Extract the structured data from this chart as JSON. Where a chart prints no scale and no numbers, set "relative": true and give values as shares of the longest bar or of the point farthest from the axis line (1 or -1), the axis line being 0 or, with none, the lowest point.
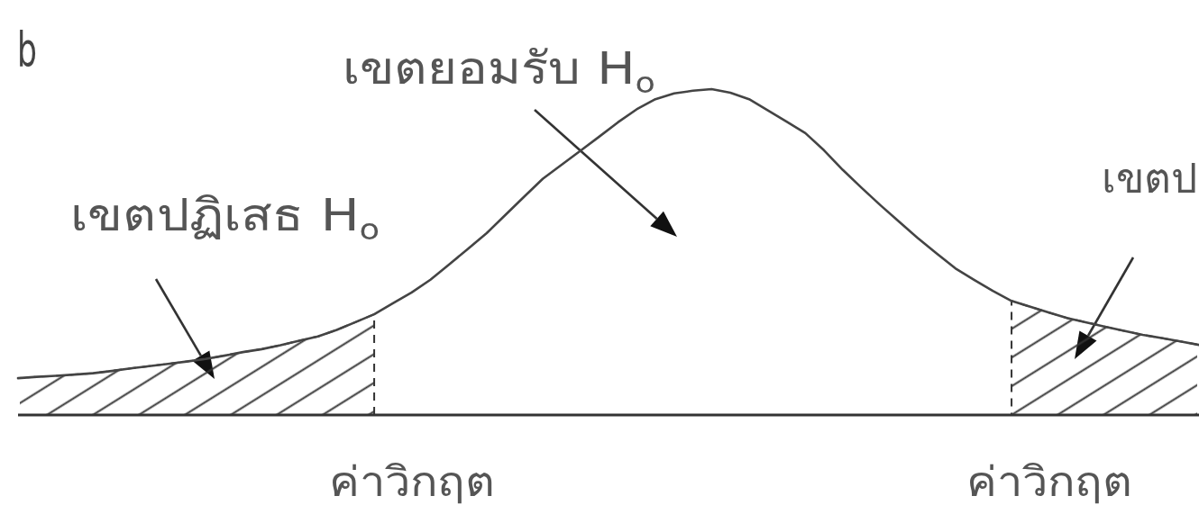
{
  "chart_data": {
    "type": "line",
    "relative": true,
    "categories": [
      null,
      null,
      null,
      null,
      null,
      null,
      null,
      null,
      null,
      null,
      null,
      null,
      null,
      null,
      null,
      null,
      null,
      null,
      null,
      null,
      null,
      "ค่าวิกฤต",
      null,
      null,
      null,
      null,
      null,
      null,
      null,
      null,
      null,
      null,
      null,
      null,
      null,
      null,
      null,
      null,
      null,
      null,
      null,
      null,
      null,
      null,
      null,
      null,
      null,
      null,
      null,
      null,
      null,
      null,
      null,
      null,
      null,
      "ค่าวิกฤต",
      null,
      null,
      null,
      null,
      null,
      null,
      null,
      null
    ],
    "series": [
      {
        "color": "#444444",
        "values": [
          0.113,
          0.117,
          0.12,
          0.124,
          0.128,
          0.135,
          0.143,
          0.15,
          0.157,
          0.164,
          0.172,
          0.182,
          0.193,
          0.202,
          0.214,
          0.228,
          0.241,
          0.261,
          0.285,
          0.309,
          0.343,
          0.376,
          0.415,
          0.462,
          0.51,
          0.558,
          0.614,
          0.67,
          0.725,
          0.768,
          0.811,
          0.854,
          0.898,
          0.938,
          0.969,
          0.987,
          0.995,
          1.0,
          0.989,
          0.969,
          0.935,
          0.9,
          0.865,
          0.812,
          0.752,
          0.697,
          0.644,
          0.593,
          0.543,
          0.496,
          0.45,
          0.415,
          0.381,
          0.35,
          0.332,
          0.314,
          0.297,
          0.284,
          0.271,
          0.258,
          0.246,
          0.236,
          0.226,
          0.215
        ]
      },
      {
        "type": "area",
        "color": "#333333",
        "line_style": "dashed",
        "values": [
          0.113,
          0.117,
          0.12,
          0.124,
          0.128,
          0.135,
          0.143,
          0.15,
          0.157,
          0.164,
          0.172,
          0.182,
          0.193,
          0.202,
          0.214,
          0.228,
          0.241,
          0.261,
          0.285,
          0.309,
          null,
          null,
          null,
          null,
          null,
          null,
          null,
          null,
          null,
          null,
          null,
          null,
          null,
          null,
          null,
          null,
          null,
          null,
          null,
          null,
          null,
          null,
          null,
          null,
          null,
          null,
          null,
          null,
          null,
          null,
          null,
          null,
          null,
          null,
          null,
          null,
          null,
          null,
          null,
          null,
          null,
          null,
          null,
          null
        ]
      },
      {
        "type": "area",
        "color": "#333333",
        "line_style": "dashed",
        "values": [
          null,
          null,
          null,
          null,
          null,
          null,
          null,
          null,
          null,
          null,
          null,
          null,
          null,
          null,
          null,
          null,
          null,
          null,
          null,
          null,
          null,
          null,
          null,
          null,
          null,
          null,
          null,
          null,
          null,
          null,
          null,
          null,
          null,
          null,
          null,
          null,
          null,
          null,
          null,
          null,
          null,
          null,
          null,
          null,
          null,
          null,
          null,
          null,
          null,
          null,
          null,
          null,
          null,
          0.35,
          0.332,
          0.314,
          0.297,
          0.284,
          0.271,
          0.258,
          0.246,
          0.236,
          0.226,
          0.215
        ]
      }
    ],
    "annotations": [
      "b",
      "เขตยอมรับ H$_{o}$",
      "เขตปฏิเสธ H$_{o}$",
      "เขตป"
    ]
  }
}
